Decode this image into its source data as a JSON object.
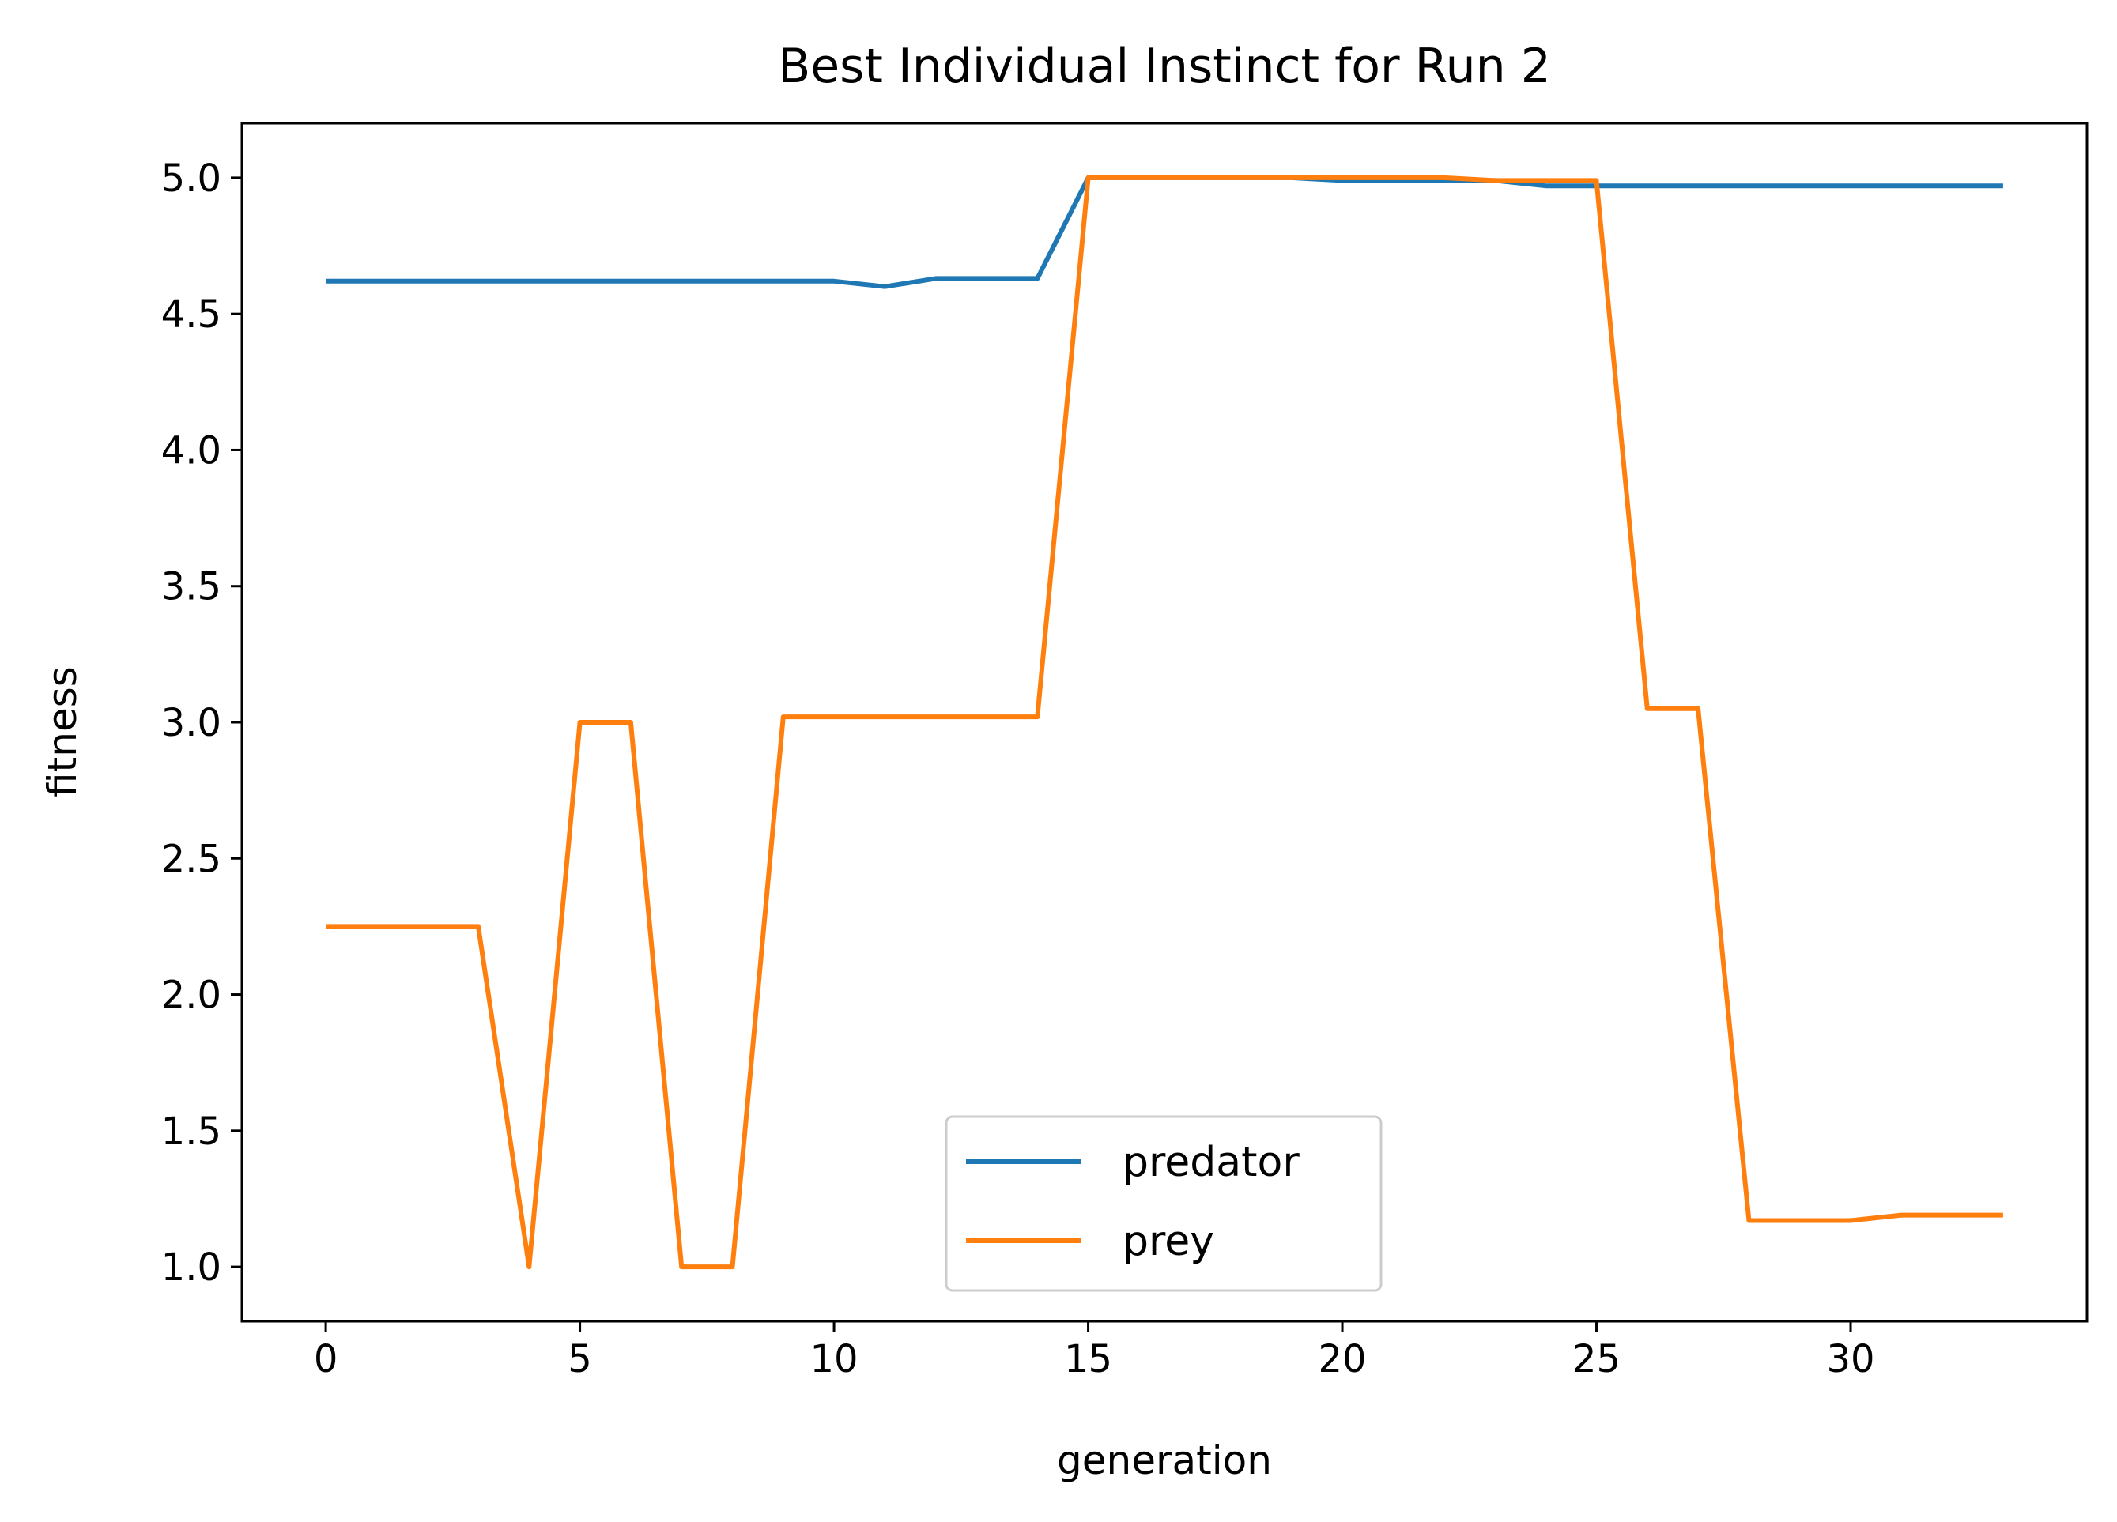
{
  "chart_data": {
    "type": "line",
    "title": "Best Individual Instinct for Run 2",
    "xlabel": "generation",
    "ylabel": "fitness",
    "xlim": [
      -1.65,
      34.65
    ],
    "ylim": [
      0.8,
      5.2
    ],
    "xticks": [
      0,
      5,
      10,
      15,
      20,
      25,
      30
    ],
    "yticks": [
      1.0,
      1.5,
      2.0,
      2.5,
      3.0,
      3.5,
      4.0,
      4.5,
      5.0
    ],
    "grid": false,
    "legend_position": "lower center",
    "x": [
      0,
      1,
      2,
      3,
      4,
      5,
      6,
      7,
      8,
      9,
      10,
      11,
      12,
      13,
      14,
      15,
      16,
      17,
      18,
      19,
      20,
      21,
      22,
      23,
      24,
      25,
      26,
      27,
      28,
      29,
      30,
      31,
      32,
      33
    ],
    "series": [
      {
        "name": "predator",
        "color": "#1f77b4",
        "values": [
          4.62,
          4.62,
          4.62,
          4.62,
          4.62,
          4.62,
          4.62,
          4.62,
          4.62,
          4.62,
          4.62,
          4.6,
          4.63,
          4.63,
          4.63,
          5.0,
          5.0,
          5.0,
          5.0,
          5.0,
          4.99,
          4.99,
          4.99,
          4.99,
          4.97,
          4.97,
          4.97,
          4.97,
          4.97,
          4.97,
          4.97,
          4.97,
          4.97,
          4.97
        ]
      },
      {
        "name": "prey",
        "color": "#ff7f0e",
        "values": [
          2.25,
          2.25,
          2.25,
          2.25,
          1.0,
          3.0,
          3.0,
          1.0,
          1.0,
          3.02,
          3.02,
          3.02,
          3.02,
          3.02,
          3.02,
          5.0,
          5.0,
          5.0,
          5.0,
          5.0,
          5.0,
          5.0,
          5.0,
          4.99,
          4.99,
          4.99,
          3.05,
          3.05,
          1.17,
          1.17,
          1.17,
          1.19,
          1.19,
          1.19
        ]
      }
    ]
  }
}
